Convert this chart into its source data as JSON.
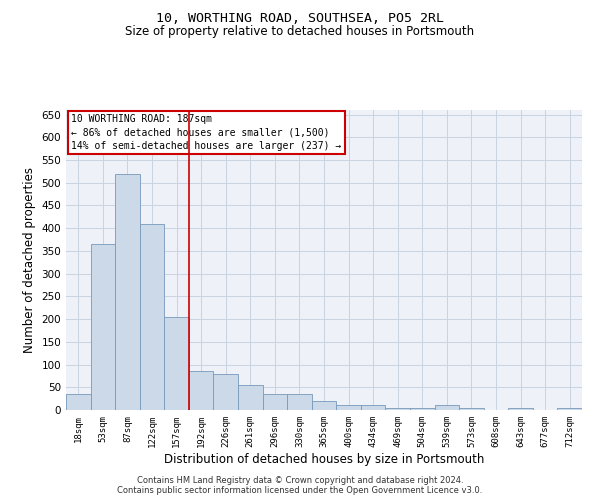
{
  "title1": "10, WORTHING ROAD, SOUTHSEA, PO5 2RL",
  "title2": "Size of property relative to detached houses in Portsmouth",
  "xlabel": "Distribution of detached houses by size in Portsmouth",
  "ylabel": "Number of detached properties",
  "categories": [
    "18sqm",
    "53sqm",
    "87sqm",
    "122sqm",
    "157sqm",
    "192sqm",
    "226sqm",
    "261sqm",
    "296sqm",
    "330sqm",
    "365sqm",
    "400sqm",
    "434sqm",
    "469sqm",
    "504sqm",
    "539sqm",
    "573sqm",
    "608sqm",
    "643sqm",
    "677sqm",
    "712sqm"
  ],
  "values": [
    35,
    365,
    520,
    410,
    205,
    85,
    80,
    55,
    35,
    35,
    20,
    10,
    10,
    5,
    5,
    10,
    5,
    0,
    5,
    0,
    5
  ],
  "bar_color": "#ccd9e8",
  "bar_edge_color": "#7799bb",
  "grid_color": "#c8d4e0",
  "background_color": "#eef2f8",
  "red_line_x": 4.5,
  "annotation_line1": "10 WORTHING ROAD: 187sqm",
  "annotation_line2": "← 86% of detached houses are smaller (1,500)",
  "annotation_line3": "14% of semi-detached houses are larger (237) →",
  "annotation_box_color": "#ffffff",
  "annotation_box_edge": "#cc0000",
  "ylim": [
    0,
    660
  ],
  "yticks": [
    0,
    50,
    100,
    150,
    200,
    250,
    300,
    350,
    400,
    450,
    500,
    550,
    600,
    650
  ],
  "footer1": "Contains HM Land Registry data © Crown copyright and database right 2024.",
  "footer2": "Contains public sector information licensed under the Open Government Licence v3.0."
}
